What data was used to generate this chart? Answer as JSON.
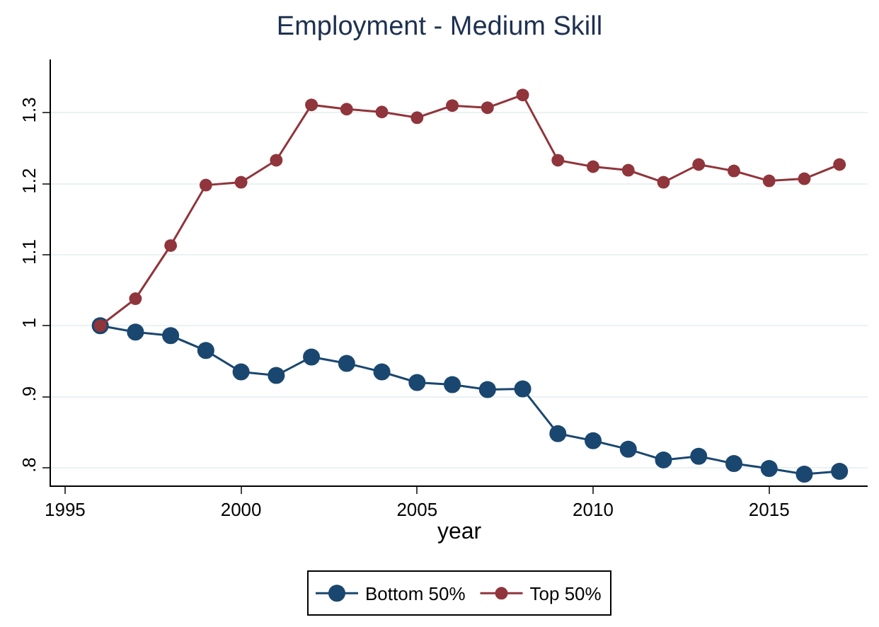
{
  "chart_data": {
    "type": "line",
    "title": "Employment - Medium Skill",
    "xlabel": "year",
    "x": [
      1996,
      1997,
      1998,
      1999,
      2000,
      2001,
      2002,
      2003,
      2004,
      2005,
      2006,
      2007,
      2008,
      2009,
      2010,
      2011,
      2012,
      2013,
      2014,
      2015,
      2016,
      2017
    ],
    "series": [
      {
        "name": "Bottom 50%",
        "color": "#1a476f",
        "values": [
          1.0,
          0.991,
          0.986,
          0.965,
          0.935,
          0.93,
          0.956,
          0.947,
          0.935,
          0.92,
          0.917,
          0.91,
          0.911,
          0.848,
          0.838,
          0.826,
          0.811,
          0.816,
          0.806,
          0.799,
          0.791,
          0.795
        ]
      },
      {
        "name": "Top 50%",
        "color": "#90353b",
        "values": [
          1.0,
          1.038,
          1.113,
          1.198,
          1.202,
          1.233,
          1.311,
          1.305,
          1.301,
          1.293,
          1.31,
          1.307,
          1.325,
          1.233,
          1.224,
          1.219,
          1.202,
          1.227,
          1.218,
          1.204,
          1.207,
          1.227
        ]
      }
    ],
    "xlim": [
      1994.6,
      2017.8
    ],
    "xticks": [
      1995,
      2000,
      2005,
      2010,
      2015
    ],
    "ylim": [
      0.775,
      1.375
    ],
    "yticks": [
      {
        "value": 0.8,
        "label": ".8"
      },
      {
        "value": 0.9,
        "label": ".9"
      },
      1,
      1.1,
      1.2,
      1.3
    ],
    "grid": "y",
    "legend": "bottom",
    "marker": "circle",
    "line_style": "solid"
  }
}
